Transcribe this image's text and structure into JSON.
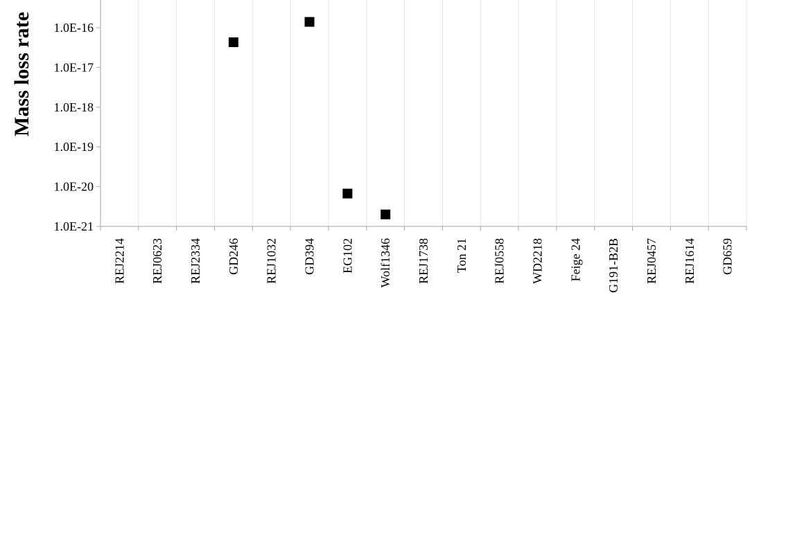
{
  "chart_data": {
    "type": "scatter",
    "title": "",
    "xlabel": "",
    "ylabel": "Mass loss rate",
    "y_scale": "log",
    "ylim": [
      1e-21,
      1e-15
    ],
    "y_tick_values": [
      1e-21,
      1e-20,
      1e-19,
      1e-18,
      1e-17,
      1e-16
    ],
    "y_tick_labels": [
      "1.0E-21",
      "1.0E-20",
      "1.0E-19",
      "1.0E-18",
      "1.0E-17",
      "1.0E-16"
    ],
    "grid": "vertical",
    "legend": "none",
    "categories": [
      "REJ2214",
      "REJ0623",
      "REJ2334",
      "GD246",
      "REJ1032",
      "GD394",
      "EG102",
      "Wolf1346",
      "REJ1738",
      "Ton 21",
      "REJ0558",
      "WD2218",
      "Feige 24",
      "G191-B2B",
      "REJ0457",
      "REJ1614",
      "GD659"
    ],
    "series": [
      {
        "marker": "square",
        "color": "#000000",
        "values": [
          null,
          null,
          null,
          4.3e-17,
          null,
          1.4e-16,
          6.7e-21,
          2e-21,
          null,
          null,
          null,
          null,
          null,
          null,
          null,
          null,
          null
        ]
      }
    ]
  },
  "colors": {
    "axis": "#a6a6a6",
    "grid": "#e4e4e4",
    "marker": "#000000"
  }
}
